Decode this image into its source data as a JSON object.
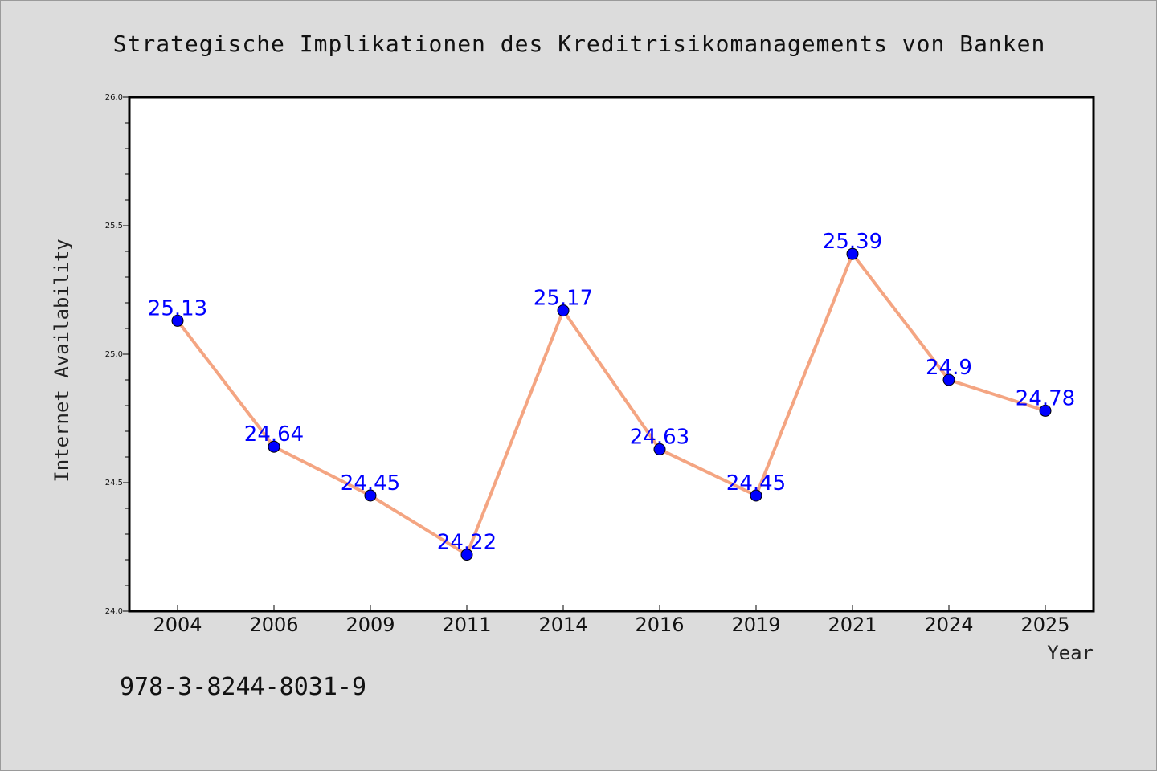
{
  "chart_data": {
    "type": "line",
    "title": "Strategische Implikationen des Kreditrisikomanagements von Banken",
    "xlabel": "Year",
    "ylabel": "Internet Availability",
    "categories": [
      "2004",
      "2006",
      "2009",
      "2011",
      "2014",
      "2016",
      "2019",
      "2021",
      "2024",
      "2025"
    ],
    "series": [
      {
        "values": [
          25.13,
          24.64,
          24.45,
          24.22,
          25.17,
          24.63,
          24.45,
          25.39,
          24.9,
          24.78
        ],
        "data_labels": [
          "25.13",
          "24.64",
          "24.45",
          "24.22",
          "25.17",
          "24.63",
          "24.45",
          "25.39",
          "24.9",
          "24.78"
        ],
        "line_color": "#f4a582",
        "marker_color": "#0000ff"
      }
    ],
    "ylim": [
      24.0,
      26.0
    ],
    "yticks": [
      "24.0",
      "24.5",
      "25.0",
      "25.5",
      "26.0"
    ],
    "ytick_values": [
      24.0,
      24.5,
      25.0,
      25.5,
      26.0
    ],
    "minor_ytick_step": 0.1,
    "grid": false,
    "legend": "none",
    "background_color": "#dcdcdc",
    "plot_background": "#ffffff",
    "label_color": "#0000ff"
  },
  "footer": {
    "isbn": "978-3-8244-8031-9"
  }
}
